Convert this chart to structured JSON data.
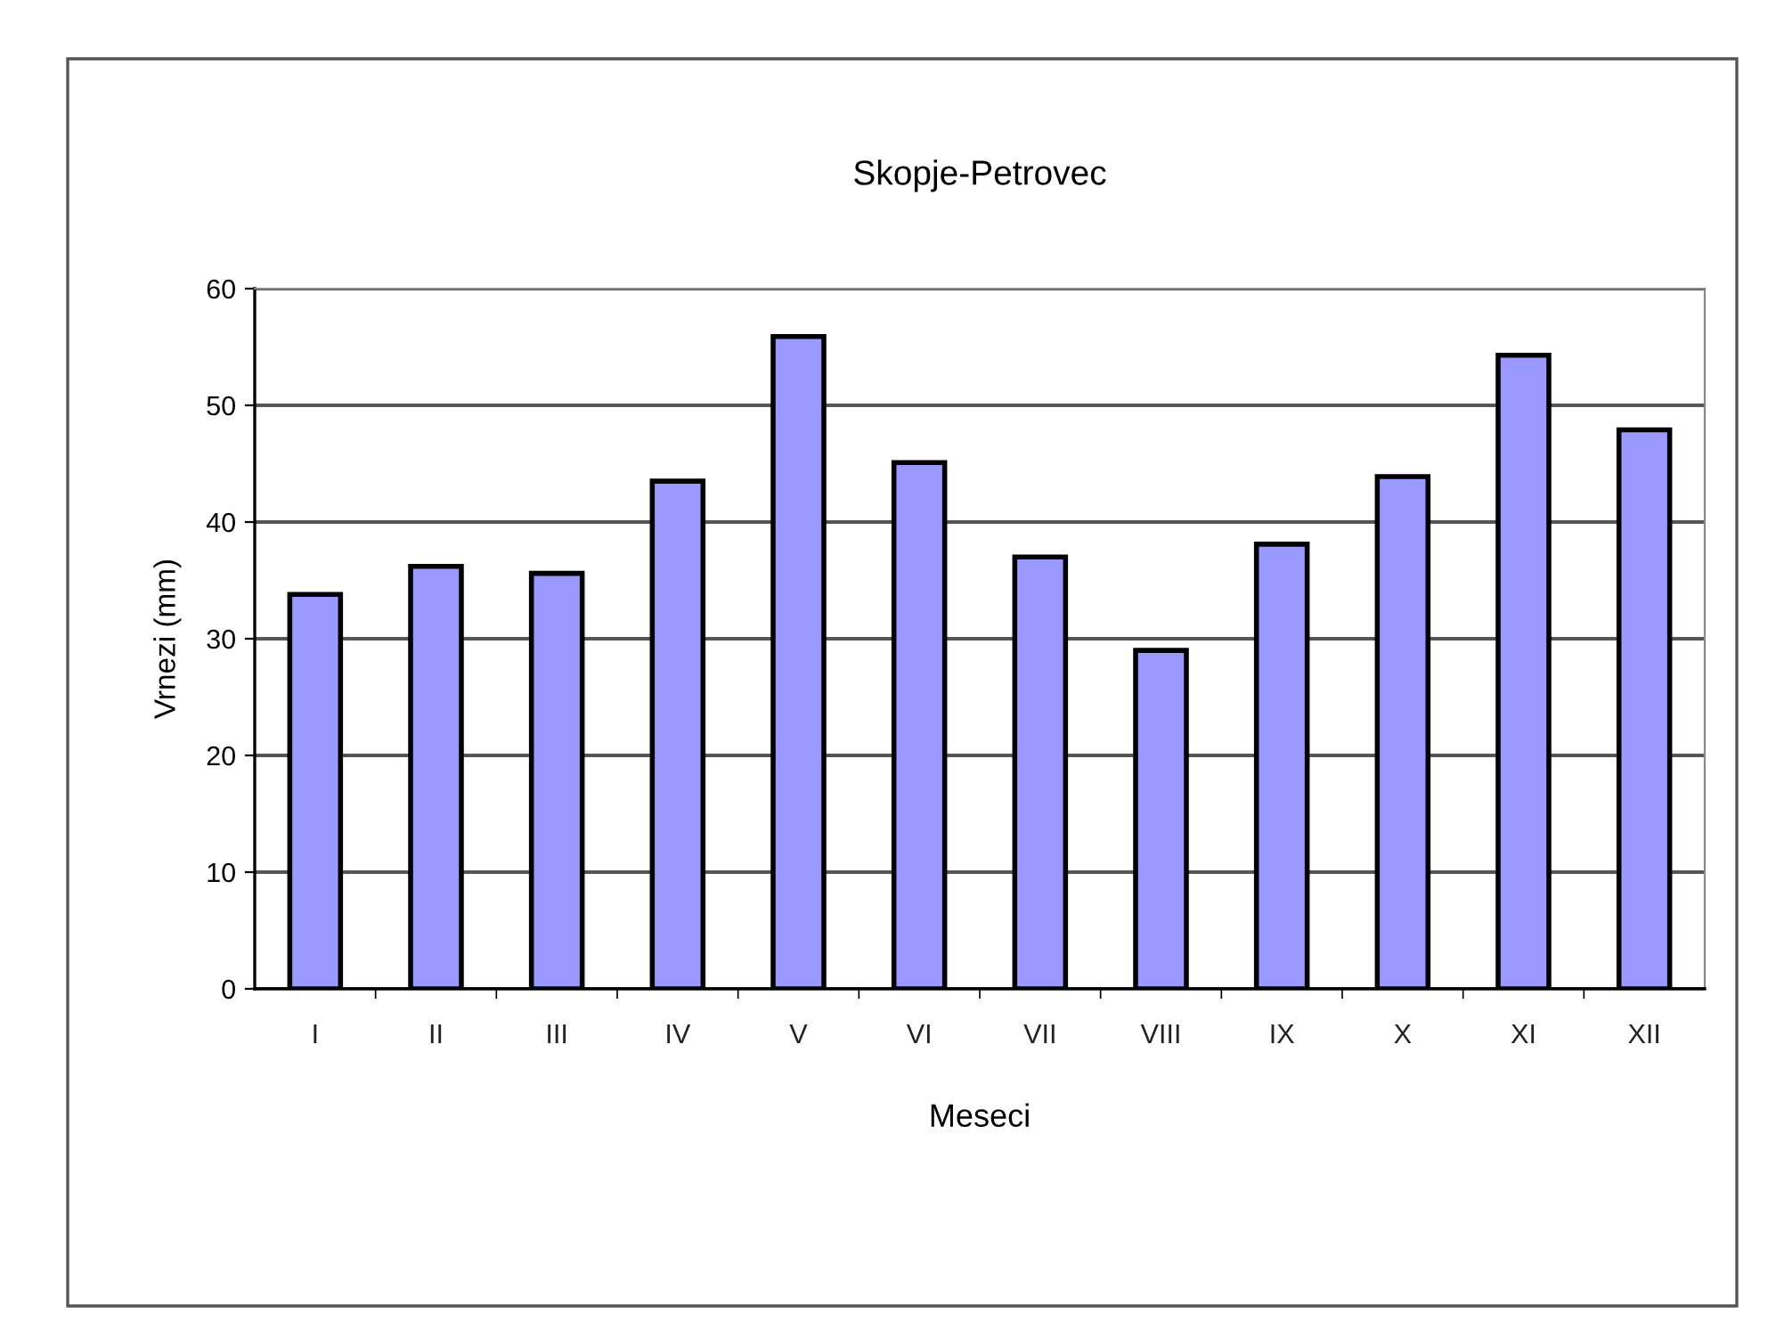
{
  "chart_data": {
    "type": "bar",
    "title": "Skopje-Petrovec",
    "xlabel": "Meseci",
    "ylabel": "Vrnezi (mm)",
    "categories": [
      "I",
      "II",
      "III",
      "IV",
      "V",
      "VI",
      "VII",
      "VIII",
      "IX",
      "X",
      "XI",
      "XII"
    ],
    "values": [
      33.8,
      36.2,
      35.6,
      43.5,
      55.9,
      45.1,
      37.0,
      29.0,
      38.1,
      43.9,
      54.3,
      47.9
    ],
    "color": "#9999ff",
    "ylim": [
      0,
      60
    ],
    "yticks": [
      0,
      10,
      20,
      30,
      40,
      50,
      60
    ],
    "grid": "y",
    "legend": false
  }
}
